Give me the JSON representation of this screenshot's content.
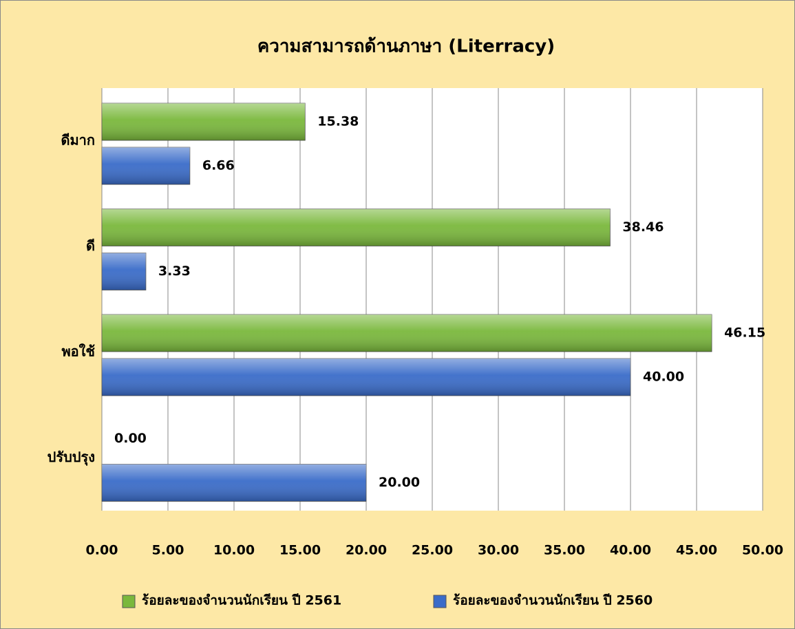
{
  "chart_data": {
    "type": "bar",
    "orientation": "horizontal",
    "title": "ความสามารถด้านภาษา (Literracy)",
    "categories": [
      "ดีมาก",
      "ดี",
      "พอใช้",
      "ปรับปรุง"
    ],
    "series": [
      {
        "name": "ร้อยละของจำนวนนักเรียน ปี 2561",
        "color": "#7ab83c",
        "values": [
          15.38,
          38.46,
          46.15,
          0
        ],
        "value_labels": [
          "15.38",
          "38.46",
          "46.15",
          "0.00"
        ]
      },
      {
        "name": "ร้อยละของจำนวนนักเรียน ปี 2560",
        "color": "#3a6cc9",
        "values": [
          6.66,
          3.33,
          40,
          20
        ],
        "value_labels": [
          "6.66",
          "3.33",
          "40.00",
          "20.00"
        ]
      }
    ],
    "xlim": [
      0,
      50
    ],
    "xticks": [
      {
        "value": 0,
        "label": "0.00"
      },
      {
        "value": 5,
        "label": "5.00"
      },
      {
        "value": 10,
        "label": "10.00"
      },
      {
        "value": 15,
        "label": "15.00"
      },
      {
        "value": 20,
        "label": "20.00"
      },
      {
        "value": 25,
        "label": "25.00"
      },
      {
        "value": 30,
        "label": "30.00"
      },
      {
        "value": 35,
        "label": "35.00"
      },
      {
        "value": 40,
        "label": "40.00"
      },
      {
        "value": 45,
        "label": "45.00"
      },
      {
        "value": 50,
        "label": "50.00"
      }
    ],
    "grid": true,
    "legend": "bottom"
  }
}
